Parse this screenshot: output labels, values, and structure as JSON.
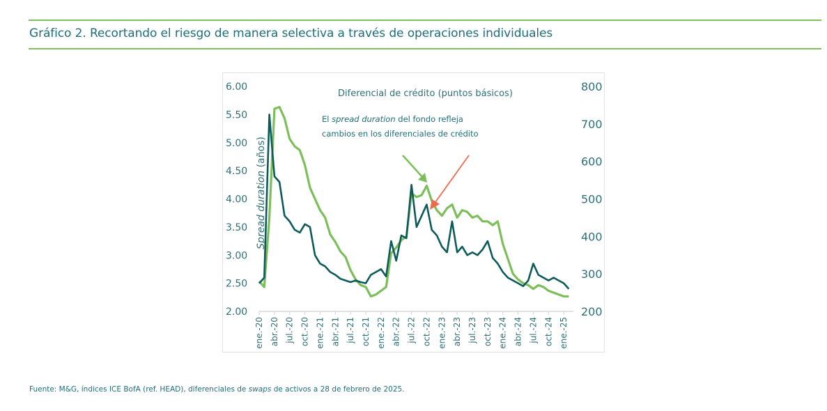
{
  "header": {
    "title": "Gráfico 2. Recortando el riesgo de manera selectiva a través de operaciones individuales"
  },
  "footer": {
    "source_prefix": "Fuente: M&G, índices ICE BofA (ref. HEAD), diferenciales de ",
    "source_italic": "swaps",
    "source_suffix": " de activos a 28 de febrero de 2025."
  },
  "colors": {
    "title_teal": "#1f6e78",
    "rule_green": "#7dc05c",
    "series_dark": "#0d5a5a",
    "series_light": "#7cbf5a",
    "arrow_orange": "#ef6a4c",
    "axis_text": "#2f6f78"
  },
  "chart_data": {
    "type": "line",
    "title": "",
    "ylabel": "Spread duration (años)",
    "ylabel_italic_part": "Spread duration",
    "ylabel_plain_part": " (años)",
    "y2label": "Diferencial de crédito (puntos básicos)",
    "ylim": [
      2.0,
      6.0
    ],
    "y2lim": [
      200,
      800
    ],
    "yticks": [
      "2.00",
      "2.50",
      "3.00",
      "3.50",
      "4.00",
      "4.50",
      "5.00",
      "5.50",
      "6.00"
    ],
    "y2ticks": [
      "200",
      "300",
      "400",
      "500",
      "600",
      "700",
      "800"
    ],
    "xticks": [
      "ene.-20",
      "abr.-20",
      "jul.-20",
      "oct.-20",
      "ene.-21",
      "abr.-21",
      "jul.-21",
      "oct.-21",
      "ene.-22",
      "abr.-22",
      "jul.-22",
      "oct.-22",
      "ene.-23",
      "abr.-23",
      "jul.-23",
      "oct.-23",
      "ene.-24",
      "abr.-24",
      "jul.-24",
      "oct.-24",
      "ene.-25"
    ],
    "x_months": [
      "2020-01",
      "2020-02",
      "2020-03",
      "2020-04",
      "2020-05",
      "2020-06",
      "2020-07",
      "2020-08",
      "2020-09",
      "2020-10",
      "2020-11",
      "2020-12",
      "2021-01",
      "2021-02",
      "2021-03",
      "2021-04",
      "2021-05",
      "2021-06",
      "2021-07",
      "2021-08",
      "2021-09",
      "2021-10",
      "2021-11",
      "2021-12",
      "2022-01",
      "2022-02",
      "2022-03",
      "2022-04",
      "2022-05",
      "2022-06",
      "2022-07",
      "2022-08",
      "2022-09",
      "2022-10",
      "2022-11",
      "2022-12",
      "2023-01",
      "2023-02",
      "2023-03",
      "2023-04",
      "2023-05",
      "2023-06",
      "2023-07",
      "2023-08",
      "2023-09",
      "2023-10",
      "2023-11",
      "2023-12",
      "2024-01",
      "2024-02",
      "2024-03",
      "2024-04",
      "2024-05",
      "2024-06",
      "2024-07",
      "2024-08",
      "2024-09",
      "2024-10",
      "2024-11",
      "2024-12",
      "2025-01",
      "2025-02"
    ],
    "grid": false,
    "legend": "none",
    "series": [
      {
        "name": "Spread duration del fondo (años)",
        "axis": "left",
        "color": "#0d5a5a",
        "values": [
          2.5,
          2.6,
          5.5,
          4.4,
          4.3,
          3.7,
          3.6,
          3.45,
          3.4,
          3.55,
          3.5,
          3.0,
          2.85,
          2.8,
          2.7,
          2.65,
          2.58,
          2.55,
          2.52,
          2.55,
          2.52,
          2.5,
          2.65,
          2.7,
          2.75,
          2.62,
          3.25,
          2.9,
          3.35,
          3.3,
          4.25,
          3.5,
          3.7,
          3.9,
          3.45,
          3.35,
          3.15,
          3.05,
          3.6,
          3.05,
          3.15,
          3.0,
          3.05,
          3.0,
          3.1,
          3.25,
          2.95,
          2.85,
          2.7,
          2.6,
          2.55,
          2.5,
          2.45,
          2.55,
          2.85,
          2.65,
          2.6,
          2.55,
          2.6,
          2.55,
          2.5,
          2.4
        ]
      },
      {
        "name": "Diferencial de crédito (puntos básicos)",
        "axis": "right",
        "color": "#7cbf5a",
        "values": [
          280,
          265,
          450,
          740,
          745,
          715,
          660,
          640,
          630,
          590,
          530,
          500,
          470,
          450,
          405,
          385,
          360,
          345,
          310,
          285,
          270,
          265,
          240,
          245,
          255,
          265,
          355,
          370,
          390,
          400,
          515,
          505,
          510,
          535,
          495,
          470,
          455,
          475,
          485,
          450,
          470,
          465,
          450,
          455,
          440,
          440,
          430,
          440,
          380,
          340,
          300,
          285,
          275,
          270,
          260,
          270,
          265,
          255,
          250,
          245,
          240,
          240
        ]
      }
    ],
    "annotations": [
      {
        "text_plain_1": "El ",
        "text_italic": "spread duration",
        "text_plain_2": " del fondo refleja",
        "line2": "cambios en los diferenciales de crédito"
      }
    ]
  }
}
